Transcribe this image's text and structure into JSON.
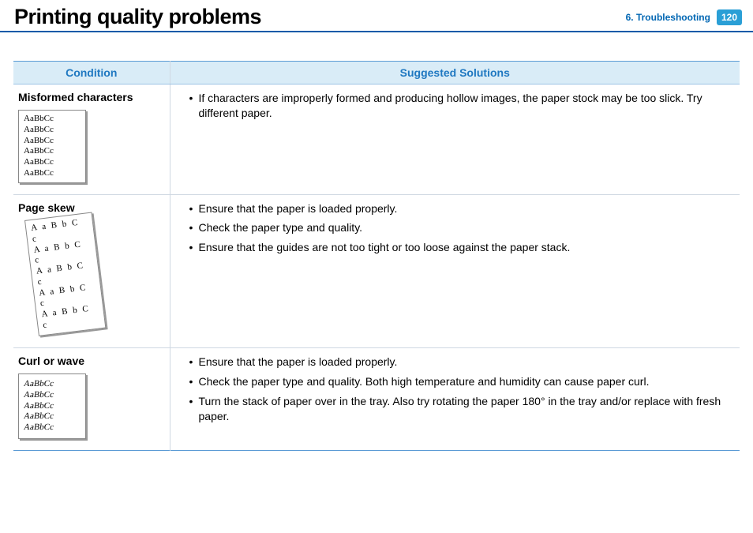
{
  "header": {
    "title": "Printing quality problems",
    "section": "6.  Troubleshooting",
    "page_number": "120"
  },
  "table": {
    "columns": {
      "condition": "Condition",
      "solutions": "Suggested Solutions"
    },
    "rows": [
      {
        "condition_title": "Misformed characters",
        "sample_lines": [
          "AaBbCc",
          "AaBbCc",
          "AaBbCc",
          "AaBbCc",
          "AaBbCc",
          "AaBbCc"
        ],
        "sample_style": "normal",
        "solutions": [
          "If characters are improperly formed and producing hollow images, the paper stock may be too slick. Try different paper."
        ]
      },
      {
        "condition_title": "Page skew",
        "sample_lines": [
          "A a B b C c",
          "A a B b C c",
          "A a B b C c",
          "A a B b C c",
          "A a B b C c"
        ],
        "sample_style": "skew",
        "solutions": [
          "Ensure that the paper is loaded properly.",
          "Check the paper type and quality.",
          "Ensure that the guides are not too tight or too loose against the paper stack."
        ]
      },
      {
        "condition_title": "Curl or wave",
        "sample_lines": [
          "AaBbCc",
          "AaBbCc",
          "AaBbCc",
          "AaBbCc",
          "AaBbCc"
        ],
        "sample_style": "wave",
        "solutions": [
          "Ensure that the paper is loaded properly.",
          "Check the paper type and quality. Both high temperature and humidity can cause paper curl.",
          "Turn the stack of paper over in the tray. Also try rotating the paper 180° in the tray and/or replace with fresh paper."
        ]
      }
    ]
  }
}
